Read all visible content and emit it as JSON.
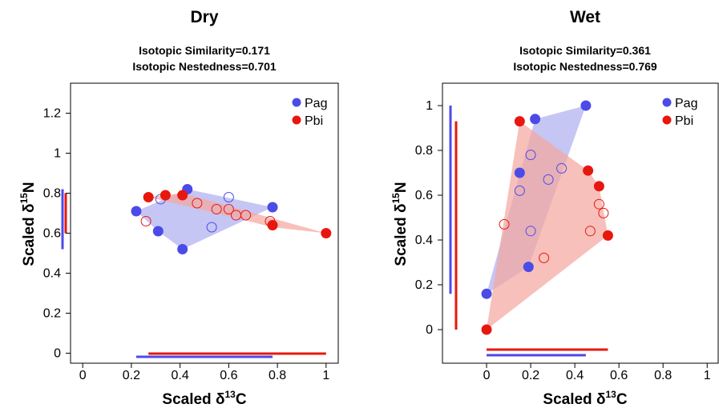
{
  "chart_data": [
    {
      "type": "scatter",
      "title": "Dry",
      "subtitle_lines": [
        "Isotopic Similarity=0.171",
        "Isotopic Nestedness=0.701"
      ],
      "xlabel": {
        "prefix": "Scaled ",
        "delta": "δ",
        "sup": "13",
        "suffix": "C"
      },
      "ylabel": {
        "prefix": "Scaled ",
        "delta": "δ",
        "sup": "15",
        "suffix": "N"
      },
      "xlim": [
        -0.05,
        1.05
      ],
      "ylim": [
        -0.05,
        1.35
      ],
      "x_ticks": [
        "0",
        "0.2",
        "0.4",
        "0.6",
        "0.8",
        "1"
      ],
      "x_tick_values": [
        0,
        0.2,
        0.4,
        0.6,
        0.8,
        1
      ],
      "y_ticks": [
        "0",
        "0.2",
        "0.4",
        "0.6",
        "0.8",
        "1",
        "1.2"
      ],
      "y_tick_values": [
        0,
        0.2,
        0.4,
        0.6,
        0.8,
        1,
        1.2
      ],
      "legend": {
        "placement": "top-right",
        "entries": [
          "Pag",
          "Pbi"
        ]
      },
      "series": [
        {
          "name": "Pag",
          "color": "#4B4BE8",
          "hull_color": "#AEB0F0",
          "filled_points": [
            [
              0.22,
              0.71
            ],
            [
              0.31,
              0.61
            ],
            [
              0.41,
              0.52
            ],
            [
              0.43,
              0.82
            ],
            [
              0.78,
              0.73
            ]
          ],
          "open_points": [
            [
              0.32,
              0.77
            ],
            [
              0.53,
              0.63
            ],
            [
              0.6,
              0.78
            ]
          ],
          "hull": [
            [
              0.22,
              0.71
            ],
            [
              0.43,
              0.82
            ],
            [
              0.78,
              0.73
            ],
            [
              0.41,
              0.52
            ],
            [
              0.31,
              0.61
            ]
          ],
          "range_x": [
            0.22,
            0.78
          ],
          "range_y": [
            0.52,
            0.82
          ]
        },
        {
          "name": "Pbi",
          "color": "#E8170E",
          "hull_color": "#F4A8A0",
          "filled_points": [
            [
              0.27,
              0.78
            ],
            [
              0.34,
              0.79
            ],
            [
              0.41,
              0.79
            ],
            [
              0.78,
              0.64
            ],
            [
              1.0,
              0.6
            ]
          ],
          "open_points": [
            [
              0.26,
              0.66
            ],
            [
              0.47,
              0.75
            ],
            [
              0.55,
              0.72
            ],
            [
              0.6,
              0.72
            ],
            [
              0.63,
              0.69
            ],
            [
              0.67,
              0.69
            ],
            [
              0.77,
              0.66
            ]
          ],
          "hull": [
            [
              0.27,
              0.78
            ],
            [
              0.41,
              0.8
            ],
            [
              1.0,
              0.6
            ],
            [
              0.78,
              0.63
            ],
            [
              0.55,
              0.7
            ]
          ],
          "range_x": [
            0.27,
            1.0
          ],
          "range_y": [
            0.6,
            0.8
          ]
        }
      ]
    },
    {
      "type": "scatter",
      "title": "Wet",
      "subtitle_lines": [
        "Isotopic Similarity=0.361",
        "Isotopic Nestedness=0.769"
      ],
      "xlabel": {
        "prefix": "Scaled ",
        "delta": "δ",
        "sup": "13",
        "suffix": "C"
      },
      "ylabel": {
        "prefix": "Scaled ",
        "delta": "δ",
        "sup": "15",
        "suffix": "N"
      },
      "xlim": [
        -0.2,
        1.05
      ],
      "ylim": [
        -0.15,
        1.1
      ],
      "x_ticks": [
        "0",
        "0.2",
        "0.4",
        "0.6",
        "0.8",
        "1"
      ],
      "x_tick_values": [
        0,
        0.2,
        0.4,
        0.6,
        0.8,
        1
      ],
      "y_ticks": [
        "0",
        "0.2",
        "0.4",
        "0.6",
        "0.8",
        "1"
      ],
      "y_tick_values": [
        0,
        0.2,
        0.4,
        0.6,
        0.8,
        1
      ],
      "legend": {
        "placement": "top-right",
        "entries": [
          "Pag",
          "Pbi"
        ]
      },
      "series": [
        {
          "name": "Pag",
          "color": "#4B4BE8",
          "hull_color": "#AEB0F0",
          "filled_points": [
            [
              0.0,
              0.16
            ],
            [
              0.22,
              0.94
            ],
            [
              0.45,
              1.0
            ],
            [
              0.15,
              0.7
            ],
            [
              0.19,
              0.28
            ]
          ],
          "open_points": [
            [
              0.2,
              0.78
            ],
            [
              0.15,
              0.62
            ],
            [
              0.28,
              0.67
            ],
            [
              0.34,
              0.72
            ],
            [
              0.2,
              0.44
            ]
          ],
          "hull": [
            [
              0.0,
              0.16
            ],
            [
              0.22,
              0.94
            ],
            [
              0.45,
              1.0
            ],
            [
              0.19,
              0.28
            ]
          ],
          "range_x": [
            0.0,
            0.45
          ],
          "range_y": [
            0.16,
            1.0
          ]
        },
        {
          "name": "Pbi",
          "color": "#E8170E",
          "hull_color": "#F4A8A0",
          "filled_points": [
            [
              0.0,
              0.0
            ],
            [
              0.15,
              0.93
            ],
            [
              0.46,
              0.71
            ],
            [
              0.51,
              0.64
            ],
            [
              0.55,
              0.42
            ]
          ],
          "open_points": [
            [
              0.08,
              0.47
            ],
            [
              0.26,
              0.32
            ],
            [
              0.47,
              0.44
            ],
            [
              0.51,
              0.56
            ],
            [
              0.53,
              0.52
            ]
          ],
          "hull": [
            [
              0.0,
              0.0
            ],
            [
              0.15,
              0.93
            ],
            [
              0.46,
              0.71
            ],
            [
              0.51,
              0.64
            ],
            [
              0.55,
              0.42
            ]
          ],
          "range_x": [
            0.0,
            0.55
          ],
          "range_y": [
            0.0,
            0.93
          ]
        }
      ]
    }
  ]
}
